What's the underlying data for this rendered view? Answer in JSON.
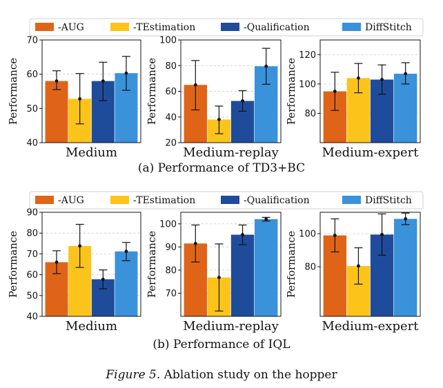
{
  "colors": {
    "aug": "#e06418",
    "testimation": "#fcc41a",
    "qualification": "#1f4c9a",
    "diffstitch": "#3a92da"
  },
  "legend": [
    "-AUG",
    "-TEstimation",
    "-Qualification",
    "DiffStitch"
  ],
  "ylabel": "Performance",
  "row_a_caption": "(a) Performance of TD3+BC",
  "row_b_caption": "(b) Performance of IQL",
  "figure_label": "Figure 5.",
  "figure_text": " Ablation study on the hopper",
  "chart_data": [
    {
      "type": "bar",
      "title": "Medium",
      "group": "a",
      "ylim": [
        40,
        70
      ],
      "yticks": [
        40,
        50,
        60,
        70
      ],
      "grid": true,
      "series": [
        {
          "name": "-AUG",
          "value": 58,
          "err": [
            55.5,
            61
          ]
        },
        {
          "name": "-TEstimation",
          "value": 52.8,
          "err": [
            45.5,
            60.2
          ]
        },
        {
          "name": "-Qualification",
          "value": 58,
          "err": [
            52.3,
            63.5
          ]
        },
        {
          "name": "DiffStitch",
          "value": 60.3,
          "err": [
            55.3,
            65.2
          ]
        }
      ]
    },
    {
      "type": "bar",
      "title": "Medium-replay",
      "group": "a",
      "ylim": [
        20,
        100
      ],
      "yticks": [
        20,
        40,
        60,
        80,
        100
      ],
      "grid": true,
      "series": [
        {
          "name": "-AUG",
          "value": 65,
          "err": [
            45.5,
            84
          ]
        },
        {
          "name": "-TEstimation",
          "value": 38,
          "err": [
            27,
            48.5
          ]
        },
        {
          "name": "-Qualification",
          "value": 52.5,
          "err": [
            44.5,
            60.5
          ]
        },
        {
          "name": "DiffStitch",
          "value": 79.5,
          "err": [
            65.5,
            93.5
          ]
        }
      ]
    },
    {
      "type": "bar",
      "title": "Medium-expert",
      "group": "a",
      "ylim": [
        60,
        130
      ],
      "yticks": [
        80,
        100,
        120
      ],
      "grid": true,
      "series": [
        {
          "name": "-AUG",
          "value": 95,
          "err": [
            82,
            108
          ]
        },
        {
          "name": "-TEstimation",
          "value": 104,
          "err": [
            94,
            114
          ]
        },
        {
          "name": "-Qualification",
          "value": 103,
          "err": [
            93,
            113
          ]
        },
        {
          "name": "DiffStitch",
          "value": 107,
          "err": [
            100,
            114.5
          ]
        }
      ]
    },
    {
      "type": "bar",
      "title": "Medium",
      "group": "b",
      "ylim": [
        40,
        90
      ],
      "yticks": [
        40,
        50,
        60,
        70,
        80,
        90
      ],
      "grid": true,
      "series": [
        {
          "name": "-AUG",
          "value": 66,
          "err": [
            60.5,
            71.5
          ]
        },
        {
          "name": "-TEstimation",
          "value": 73.8,
          "err": [
            63.5,
            84.2
          ]
        },
        {
          "name": "-Qualification",
          "value": 57.8,
          "err": [
            53.2,
            62.3
          ]
        },
        {
          "name": "DiffStitch",
          "value": 71.2,
          "err": [
            66.7,
            75.5
          ]
        }
      ]
    },
    {
      "type": "bar",
      "title": "Medium-replay",
      "group": "b",
      "ylim": [
        60,
        105
      ],
      "yticks": [
        70,
        80,
        90,
        100
      ],
      "grid": true,
      "series": [
        {
          "name": "-AUG",
          "value": 91.5,
          "err": [
            83.5,
            99.5
          ]
        },
        {
          "name": "-TEstimation",
          "value": 76.8,
          "err": [
            62.3,
            91.3
          ]
        },
        {
          "name": "-Qualification",
          "value": 95.3,
          "err": [
            91,
            99.5
          ]
        },
        {
          "name": "DiffStitch",
          "value": 102,
          "err": [
            101.2,
            102.8
          ]
        }
      ]
    },
    {
      "type": "bar",
      "title": "Medium-expert",
      "group": "b",
      "ylim": [
        50,
        113
      ],
      "yticks": [
        80,
        100
      ],
      "grid": true,
      "series": [
        {
          "name": "-AUG",
          "value": 99,
          "err": [
            89,
            109
          ]
        },
        {
          "name": "-TEstimation",
          "value": 80.5,
          "err": [
            69.5,
            91.5
          ]
        },
        {
          "name": "-Qualification",
          "value": 99.5,
          "err": [
            87,
            112
          ]
        },
        {
          "name": "DiffStitch",
          "value": 109,
          "err": [
            105.5,
            112.5
          ]
        }
      ]
    }
  ]
}
